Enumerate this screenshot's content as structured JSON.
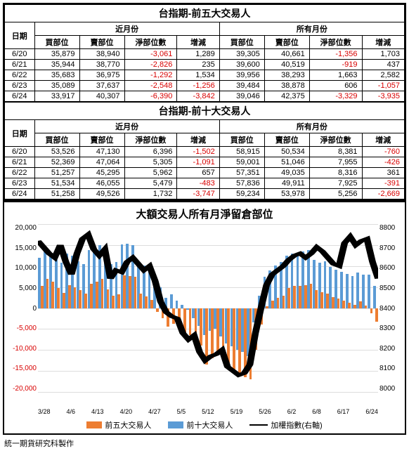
{
  "table1": {
    "title": "台指期-前五大交易人",
    "group_near": "近月份",
    "group_all": "所有月份",
    "col_date": "日期",
    "col_buy": "買部位",
    "col_sell": "賣部位",
    "col_net": "淨部位數",
    "col_chg": "增減",
    "rows": [
      {
        "date": "6/20",
        "nb": "35,879",
        "ns": "38,940",
        "nn": "-3,061",
        "nc": "1,289",
        "ab": "39,305",
        "as": "40,661",
        "an": "-1,356",
        "ac": "1,703"
      },
      {
        "date": "6/21",
        "nb": "35,944",
        "ns": "38,770",
        "nn": "-2,826",
        "nc": "235",
        "ab": "39,600",
        "as": "40,519",
        "an": "-919",
        "ac": "437"
      },
      {
        "date": "6/22",
        "nb": "35,683",
        "ns": "36,975",
        "nn": "-1,292",
        "nc": "1,534",
        "ab": "39,956",
        "as": "38,293",
        "an": "1,663",
        "ac": "2,582"
      },
      {
        "date": "6/23",
        "nb": "35,089",
        "ns": "37,637",
        "nn": "-2,548",
        "nc": "-1,256",
        "ab": "39,484",
        "as": "38,878",
        "an": "606",
        "ac": "-1,057"
      },
      {
        "date": "6/24",
        "nb": "33,917",
        "ns": "40,307",
        "nn": "-6,390",
        "nc": "-3,842",
        "ab": "39,046",
        "as": "42,375",
        "an": "-3,329",
        "ac": "-3,935"
      }
    ]
  },
  "table2": {
    "title": "台指期-前十大交易人",
    "rows": [
      {
        "date": "6/20",
        "nb": "53,526",
        "ns": "47,130",
        "nn": "6,396",
        "nc": "-1,502",
        "ab": "58,915",
        "as": "50,534",
        "an": "8,381",
        "ac": "-760"
      },
      {
        "date": "6/21",
        "nb": "52,369",
        "ns": "47,064",
        "nn": "5,305",
        "nc": "-1,091",
        "ab": "59,001",
        "as": "51,046",
        "an": "7,955",
        "ac": "-426"
      },
      {
        "date": "6/22",
        "nb": "51,257",
        "ns": "45,295",
        "nn": "5,962",
        "nc": "657",
        "ab": "57,351",
        "as": "49,035",
        "an": "8,316",
        "ac": "361"
      },
      {
        "date": "6/23",
        "nb": "51,534",
        "ns": "46,055",
        "nn": "5,479",
        "nc": "-483",
        "ab": "57,836",
        "as": "49,911",
        "an": "7,925",
        "ac": "-391"
      },
      {
        "date": "6/24",
        "nb": "51,258",
        "ns": "49,526",
        "nn": "1,732",
        "nc": "-3,747",
        "ab": "59,234",
        "as": "53,978",
        "an": "5,256",
        "ac": "-2,669"
      }
    ]
  },
  "chart": {
    "title": "大額交易人所有月淨留倉部位",
    "y_left": {
      "min": -20000,
      "max": 20000,
      "ticks": [
        "20,000",
        "15,000",
        "10,000",
        "5,000",
        "0",
        "-5,000",
        "-10,000",
        "-15,000",
        "-20,000"
      ]
    },
    "y_right": {
      "min": 8000,
      "max": 8800,
      "ticks": [
        "8800",
        "8700",
        "8600",
        "8500",
        "8400",
        "8300",
        "8200",
        "8100",
        "8000"
      ]
    },
    "x_labels": [
      "3/28",
      "4/6",
      "4/13",
      "4/20",
      "4/27",
      "5/5",
      "5/12",
      "5/19",
      "5/26",
      "6/2",
      "6/8",
      "6/17",
      "6/24"
    ],
    "colors": {
      "top5": "#ed7d31",
      "top10": "#5b9bd5",
      "line": "#000000",
      "grid": "#dddddd",
      "bg": "#ffffff",
      "neg_tick": "#d80000"
    },
    "legend": {
      "s1": "前五大交易人",
      "s2": "前十大交易人",
      "s3": "加權指數(右軸)"
    },
    "series_top5": [
      5200,
      7000,
      6200,
      4800,
      3600,
      5500,
      5000,
      4200,
      3500,
      5800,
      6300,
      7000,
      4500,
      3000,
      3200,
      7800,
      7700,
      7500,
      3500,
      2800,
      2000,
      -1000,
      -2500,
      -4500,
      -3800,
      -5000,
      -6000,
      -6500,
      -7200,
      -9000,
      -13500,
      -12000,
      -11000,
      -11500,
      -14000,
      -15500,
      -16000,
      -16500,
      -17000,
      -10000,
      -4000,
      500,
      1800,
      2500,
      3000,
      4800,
      5200,
      5300,
      5500,
      5700,
      4200,
      3800,
      3500,
      2600,
      2300,
      1800,
      1300,
      800,
      1600,
      600,
      -1300,
      -3300
    ],
    "series_top10": [
      12000,
      14500,
      13200,
      11500,
      10800,
      13000,
      12400,
      11200,
      10500,
      13800,
      14200,
      15000,
      13000,
      10500,
      11000,
      15200,
      15400,
      15000,
      10500,
      10200,
      9800,
      6500,
      5000,
      2500,
      3200,
      1800,
      800,
      -500,
      -2500,
      -4200,
      -6500,
      -5500,
      -5000,
      -6800,
      -8500,
      -9200,
      -10000,
      -10500,
      -11500,
      -3500,
      3000,
      7500,
      9000,
      10200,
      11000,
      12500,
      13000,
      13200,
      13500,
      13800,
      11500,
      10800,
      11200,
      9800,
      9200,
      8700,
      8200,
      7600,
      8400,
      8000,
      7900,
      5200
    ],
    "series_index": [
      8720,
      8690,
      8660,
      8640,
      8700,
      8620,
      8560,
      8660,
      8730,
      8750,
      8680,
      8650,
      8680,
      8540,
      8580,
      8570,
      8620,
      8640,
      8610,
      8580,
      8600,
      8530,
      8430,
      8380,
      8360,
      8350,
      8280,
      8250,
      8270,
      8190,
      8150,
      8170,
      8180,
      8200,
      8120,
      8100,
      8080,
      8090,
      8130,
      8280,
      8400,
      8510,
      8560,
      8580,
      8600,
      8630,
      8650,
      8660,
      8640,
      8660,
      8690,
      8670,
      8640,
      8610,
      8600,
      8710,
      8740,
      8700,
      8720,
      8730,
      8620,
      8540
    ]
  },
  "footer": "統一期貨研究科製作"
}
